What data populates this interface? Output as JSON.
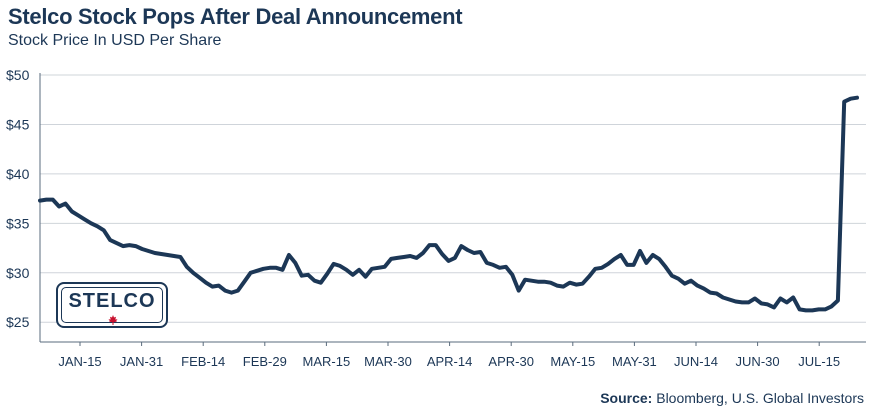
{
  "chart_data": {
    "type": "line",
    "title": "Stelco Stock Pops After Deal Announcement",
    "subtitle": "Stock Price In USD Per Share",
    "ylabel": "",
    "xlabel": "",
    "ylim": [
      23,
      50
    ],
    "yticks": [
      {
        "value": 25,
        "label": "$25"
      },
      {
        "value": 30,
        "label": "$30"
      },
      {
        "value": 35,
        "label": "$35"
      },
      {
        "value": 40,
        "label": "$40"
      },
      {
        "value": 45,
        "label": "$45"
      },
      {
        "value": 50,
        "label": "$50"
      }
    ],
    "xticks": [
      "JAN-15",
      "JAN-31",
      "FEB-14",
      "FEB-29",
      "MAR-15",
      "MAR-30",
      "APR-14",
      "APR-30",
      "MAY-15",
      "MAY-31",
      "JUN-14",
      "JUN-30",
      "JUL-15"
    ],
    "grid": "horizontal",
    "line_color": "#1c3756",
    "series": [
      {
        "values": [
          37.3,
          37.4,
          37.4,
          36.7,
          37.0,
          36.2,
          35.8,
          35.4,
          35.0,
          34.7,
          34.3,
          33.3,
          33.0,
          32.7,
          32.8,
          32.7,
          32.4,
          32.2,
          32.0,
          31.9,
          31.8,
          31.7,
          31.6,
          30.6,
          30.0,
          29.5,
          29.0,
          28.6,
          28.7,
          28.2,
          28.0,
          28.2,
          29.1,
          30.0,
          30.2,
          30.4,
          30.5,
          30.5,
          30.3,
          31.8,
          31.0,
          29.7,
          29.8,
          29.2,
          29.0,
          29.9,
          30.9,
          30.7,
          30.3,
          29.8,
          30.3,
          29.6,
          30.4,
          30.5,
          30.6,
          31.4,
          31.5,
          31.6,
          31.7,
          31.5,
          32.0,
          32.8,
          32.8,
          31.9,
          31.2,
          31.5,
          32.7,
          32.3,
          32.0,
          32.1,
          31.0,
          30.8,
          30.5,
          30.6,
          29.8,
          28.2,
          29.3,
          29.2,
          29.1,
          29.1,
          29.0,
          28.7,
          28.6,
          29.0,
          28.8,
          28.9,
          29.6,
          30.4,
          30.5,
          30.9,
          31.4,
          31.8,
          30.8,
          30.8,
          32.2,
          31.0,
          31.8,
          31.4,
          30.6,
          29.7,
          29.4,
          28.9,
          29.2,
          28.7,
          28.4,
          28.0,
          27.9,
          27.5,
          27.3,
          27.1,
          27.0,
          27.0,
          27.4,
          26.9,
          26.8,
          26.5,
          27.4,
          27.0,
          27.5,
          26.3,
          26.2,
          26.2,
          26.3,
          26.3,
          26.6,
          27.2,
          47.3,
          47.6,
          47.7
        ]
      }
    ]
  },
  "source": {
    "label": "Source:",
    "text": " Bloomberg, U.S. Global Investors"
  },
  "logo": {
    "text": "STELCO"
  }
}
